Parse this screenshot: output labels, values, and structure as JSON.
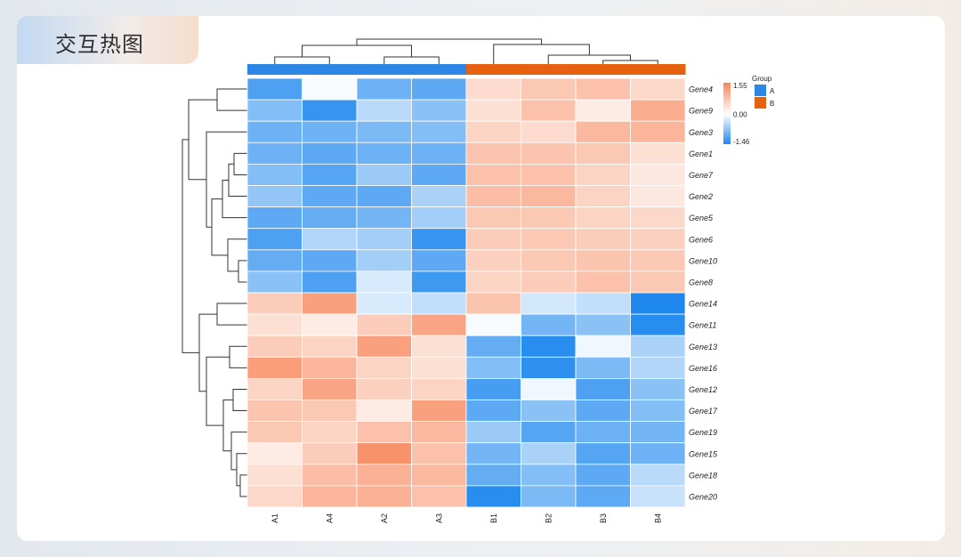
{
  "page": {
    "title": "交互热图"
  },
  "chart_data": {
    "type": "heatmap",
    "title": "",
    "xlabel": "",
    "ylabel": "",
    "columns": [
      "A1",
      "A4",
      "A2",
      "A3",
      "B1",
      "B2",
      "B3",
      "B4"
    ],
    "rows": [
      "Gene4",
      "Gene9",
      "Gene3",
      "Gene1",
      "Gene7",
      "Gene2",
      "Gene5",
      "Gene6",
      "Gene10",
      "Gene8",
      "Gene14",
      "Gene11",
      "Gene13",
      "Gene16",
      "Gene12",
      "Gene17",
      "Gene19",
      "Gene15",
      "Gene18",
      "Gene20"
    ],
    "values": [
      [
        -1.15,
        -0.05,
        -0.95,
        -1.05,
        0.45,
        0.7,
        0.8,
        0.5
      ],
      [
        -0.8,
        -1.3,
        -0.45,
        -0.75,
        0.4,
        0.8,
        0.25,
        1.05
      ],
      [
        -0.95,
        -0.95,
        -0.85,
        -0.8,
        0.55,
        0.45,
        0.9,
        0.95
      ],
      [
        -0.95,
        -1.05,
        -0.95,
        -0.95,
        0.75,
        0.75,
        0.7,
        0.4
      ],
      [
        -0.8,
        -1.1,
        -0.65,
        -1.05,
        0.8,
        0.8,
        0.55,
        0.3
      ],
      [
        -0.7,
        -1.05,
        -1.05,
        -0.55,
        0.85,
        0.9,
        0.55,
        0.3
      ],
      [
        -1.05,
        -1.0,
        -0.9,
        -0.6,
        0.7,
        0.7,
        0.55,
        0.5
      ],
      [
        -1.15,
        -0.5,
        -0.6,
        -1.3,
        0.65,
        0.7,
        0.65,
        0.6
      ],
      [
        -1.0,
        -1.05,
        -0.6,
        -1.05,
        0.6,
        0.7,
        0.75,
        0.7
      ],
      [
        -0.75,
        -1.15,
        -0.25,
        -1.25,
        0.55,
        0.65,
        0.8,
        0.7
      ],
      [
        0.65,
        1.2,
        -0.25,
        -0.4,
        0.75,
        -0.3,
        -0.4,
        -1.46
      ],
      [
        0.4,
        0.25,
        0.65,
        1.15,
        -0.05,
        -0.9,
        -0.75,
        -1.4
      ],
      [
        0.65,
        0.55,
        1.2,
        0.4,
        -1.0,
        -1.4,
        -0.1,
        -0.55
      ],
      [
        1.25,
        0.95,
        0.55,
        0.4,
        -0.8,
        -1.35,
        -0.85,
        -0.5
      ],
      [
        0.55,
        1.15,
        0.6,
        0.55,
        -1.2,
        -0.1,
        -1.15,
        -0.75
      ],
      [
        0.75,
        0.7,
        0.25,
        1.2,
        -1.05,
        -0.75,
        -1.05,
        -0.8
      ],
      [
        0.7,
        0.55,
        0.8,
        0.9,
        -0.65,
        -1.1,
        -0.95,
        -0.9
      ],
      [
        0.25,
        0.65,
        1.4,
        0.8,
        -0.9,
        -0.55,
        -1.1,
        -0.95
      ],
      [
        0.4,
        0.85,
        1.0,
        0.9,
        -1.0,
        -0.8,
        -1.05,
        -0.45
      ],
      [
        0.5,
        0.95,
        1.0,
        0.8,
        -1.4,
        -0.85,
        -1.05,
        -0.35
      ]
    ],
    "column_groups": [
      "A",
      "A",
      "A",
      "A",
      "B",
      "B",
      "B",
      "B"
    ],
    "scale": {
      "min": -1.46,
      "mid": 0.0,
      "max": 1.55,
      "min_label": "-1.46",
      "mid_label": "0.00",
      "max_label": "1.55",
      "low_color": "#1e88ee",
      "mid_color": "#ffffff",
      "high_color": "#f7865a"
    },
    "legend": {
      "title": "Group",
      "placement": "top-right",
      "items": [
        {
          "label": "A",
          "color": "#2b86e6"
        },
        {
          "label": "B",
          "color": "#e6620e"
        }
      ]
    }
  }
}
